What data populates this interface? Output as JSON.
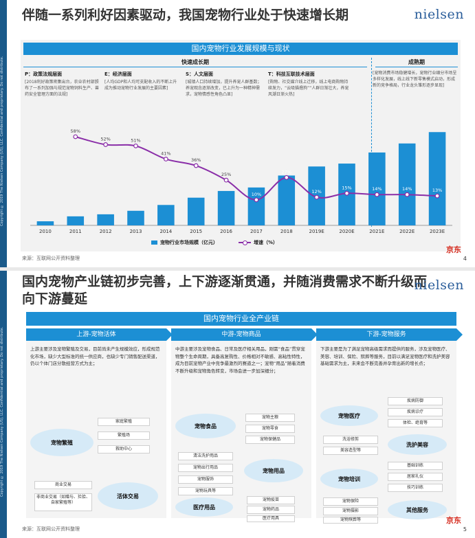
{
  "colors": {
    "accent": "#1c8fd4",
    "line": "#8a2ea8",
    "brand": "#2a5d9a",
    "jd": "#d52b1e"
  },
  "slide1": {
    "title": "伴随一系列利好因素驱动，我国宠物行业处于快速增长期",
    "brand": "nielsen",
    "panel_title": "国内宠物行业发展规模与现状",
    "phases": {
      "growth": "快速成长期",
      "mature": "成熟期"
    },
    "drivers": [
      {
        "head": "P：政策法规层面",
        "text": "[2018利好政策密集出台，农业农村部颁布了一系列加强与规范宠物饲料生产、兽药安全管理方面的法规]"
      },
      {
        "head": "E：经济层面",
        "text": "[人均GDP和人均可支配收入的不断上升成为推动宠物行业发展的主要因素]"
      },
      {
        "head": "S：人文层面",
        "text": "[城镇人口持续增加，提升养宠人群基数；养宠观念逐渐改变，已上升为一种精神需求，宠物情感性角色凸显]"
      },
      {
        "head": "T：科技互联技术层面",
        "text": "[购物、社交媒介线上迁移，线上电商购物持续发力，“云吸猫撸狗”“人群日渐壮大，养宠风潮日渐火热]"
      },
      {
        "head": "",
        "text": "[宠物消费市场稳健增长，宠物行业细分市场呈多样化发展，线上线下新零售模式启动，形成新的竞争格局，行业龙头雏形逐步显现]"
      }
    ],
    "legend": {
      "bar": "宠物行业市场规模（亿元）",
      "line": "增速（%）"
    },
    "footer_source": "来源：互联网公开资料整理",
    "page_no": "4",
    "jd_label": "京东",
    "side_text": "Copyright © 2019 The Nielsen Company (US), LLC. Confidential and proprietary. Do not distribute."
  },
  "chart_data": {
    "type": "bar",
    "categories": [
      "2010",
      "2011",
      "2012",
      "2013",
      "2014",
      "2015",
      "2016",
      "2017",
      "2018",
      "2019E",
      "2020E",
      "2021E",
      "2022E",
      "2023E"
    ],
    "series": [
      {
        "name": "宠物行业市场规模（亿元）",
        "type": "bar",
        "values": [
          140,
          310,
          380,
          500,
          700,
          950,
          1180,
          1300,
          1710,
          2020,
          2120,
          2500,
          2810,
          3200
        ]
      },
      {
        "name": "增速（%）",
        "type": "line",
        "values": [
          null,
          58,
          52,
          51,
          41,
          36,
          25,
          10,
          27,
          12,
          15,
          14,
          14,
          13
        ],
        "labels": [
          "",
          "58%",
          "52%",
          "51%",
          "41%",
          "36%",
          "25%",
          "10%",
          "27%",
          "12%",
          "15%",
          "14%",
          "14%",
          "13%"
        ]
      }
    ],
    "ylim_bar": [
      0,
      3300
    ],
    "ylim_line": [
      0,
      70
    ],
    "grid": false,
    "legend_position": "bottom"
  },
  "slide2": {
    "title": "国内宠物产业链初步完善，上下游逐渐贯通，并随消费需求不断升级而向下游蔓延",
    "brand": "nielsen",
    "panel_title": "国内宠物行业全产业链",
    "columns": [
      {
        "head": "上游-宠物活体",
        "desc": "上游主要涉及宠物繁殖及交易，目前尚未产生规模效应，形成规范化市场，缺少大型标准的统一供应商，也缺少专门销售配送渠道，仍以个体门店分散经营方式为主；"
      },
      {
        "head": "中游-宠物商品",
        "desc": "中游主要涉及宠物食品、日常及医疗相关用品，刚需“食品”贯穿宠物整个生命周期，具备高复购性、价格相对不敏感、高粘性特性，成为目前宠物产业中竞争最激烈的赛道之一；宠物“用品”随着消费不断升级和宠物角色转变，市场会进一步加深细分；"
      },
      {
        "head": "下游-宠物服务",
        "desc": "下游主要是为了满足宠物高级需求而提供的服务，涉及宠物医疗、美容、培训、保险、殡葬等服务，目前以满足宠物医疗和洗护美容基础需求为主，未来会不断完善并孕育出新的增长点；"
      }
    ],
    "upstream": {
      "breeding": {
        "name": "宠物繁殖",
        "items": [
          "家庭繁殖",
          "繁殖场",
          "救助中心"
        ]
      },
      "trade": {
        "name": "活体交易",
        "items": [
          "商业交易",
          "非商业交易（如赠与、捡拾、自家繁殖等）"
        ]
      }
    },
    "midstream": {
      "food": {
        "name": "宠物食品",
        "items": [
          "宠物主粮",
          "宠物零食",
          "宠物保健品"
        ]
      },
      "supplies": {
        "name": "宠物用品",
        "items": [
          "清洁洗护用品",
          "宠物出行用品",
          "宠物服饰",
          "宠物玩具等"
        ]
      },
      "medical": {
        "name": "医疗用品",
        "items": [
          "宠物疫苗",
          "宠物药品",
          "医疗用具"
        ]
      }
    },
    "downstream": {
      "medical": {
        "name": "宠物医疗",
        "items": [
          "疾病防御",
          "疾病诊疗",
          "体检、绝育等"
        ]
      },
      "grooming": {
        "name": "洗护美容",
        "items": [
          "洗浴修剪",
          "美容造型等"
        ]
      },
      "training": {
        "name": "宠物培训",
        "items": [
          "基础训练",
          "居家礼仪",
          "技巧训练"
        ]
      },
      "other": {
        "name": "其他服务",
        "items": [
          "宠物保险",
          "宠物摄影",
          "宠物殡葬等"
        ]
      }
    },
    "footer_source": "来源：互联网公开资料整理",
    "page_no": "5",
    "jd_label": "京东",
    "side_text": "Copyright © 2019 The Nielsen Company (US), LLC. Confidential and proprietary. Do not distribute."
  }
}
